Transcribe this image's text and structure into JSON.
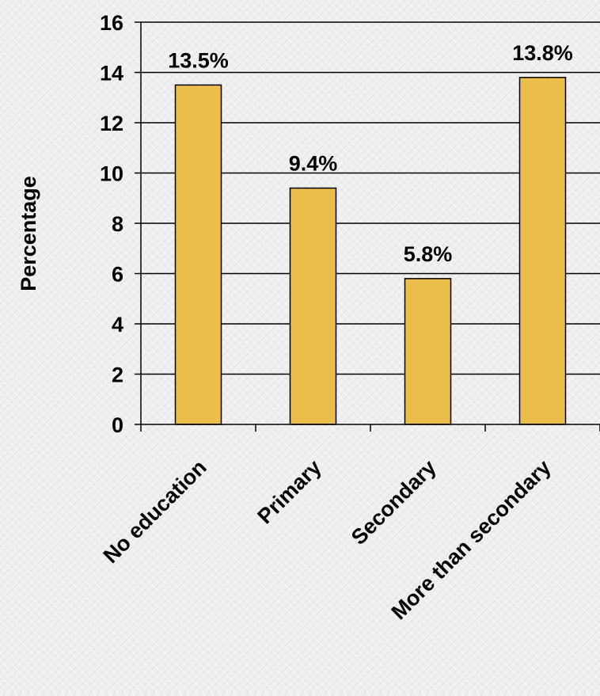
{
  "chart_data": {
    "type": "bar",
    "title": "",
    "xlabel": "",
    "ylabel": "Percentage",
    "categories": [
      "No education",
      "Primary",
      "Secondary",
      "More than secondary"
    ],
    "values": [
      13.5,
      9.4,
      5.8,
      13.8
    ],
    "data_labels": [
      "13.5%",
      "9.4%",
      "5.8%",
      "13.8%"
    ],
    "ylim": [
      0,
      16
    ],
    "yticks": [
      0,
      2,
      4,
      6,
      8,
      10,
      12,
      14,
      16
    ],
    "grid": true,
    "legend": "none",
    "colors": {
      "bar_fill": "#ebbd4a",
      "bar_stroke": "#000000",
      "grid": "#000000"
    }
  }
}
